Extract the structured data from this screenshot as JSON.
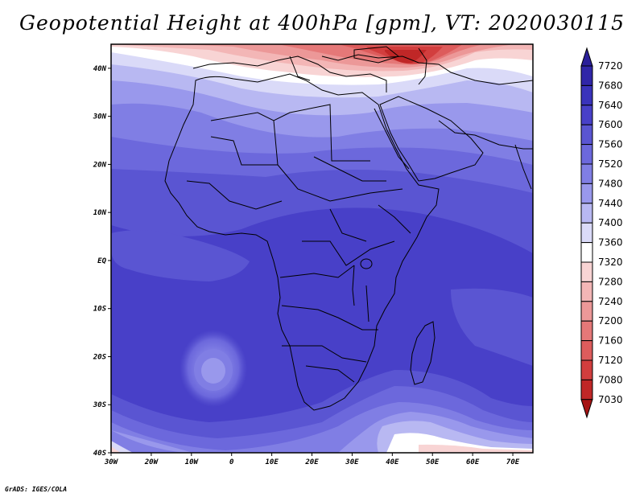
{
  "title": "Geopotential Height at 400hPa [gpm], VT: 2020030115",
  "credit": "GrADS: IGES/COLA",
  "map": {
    "lon_range": [
      -30,
      75
    ],
    "lat_range": [
      -40,
      45
    ],
    "lon_ticks": [
      "30W",
      "20W",
      "10W",
      "0",
      "10E",
      "20E",
      "30E",
      "40E",
      "50E",
      "60E",
      "70E"
    ],
    "lat_ticks": [
      "40N",
      "30N",
      "20N",
      "10N",
      "EQ",
      "10S",
      "20S",
      "30S",
      "40S"
    ]
  },
  "colorbar": {
    "levels": [
      "7720",
      "7680",
      "7640",
      "7600",
      "7560",
      "7520",
      "7480",
      "7440",
      "7400",
      "7360",
      "7320",
      "7280",
      "7240",
      "7200",
      "7160",
      "7120",
      "7080",
      "7030"
    ],
    "colors": [
      "#2a1f99",
      "#3026a8",
      "#3a33bb",
      "#4840c8",
      "#5a55d2",
      "#6c68dc",
      "#807ee4",
      "#9998ec",
      "#b8b8f2",
      "#dadaf8",
      "#ffffff",
      "#f8d4d4",
      "#f3b6b6",
      "#ec9898",
      "#e57878",
      "#dd5c5c",
      "#d23e3e",
      "#c02727",
      "#a61414"
    ]
  }
}
